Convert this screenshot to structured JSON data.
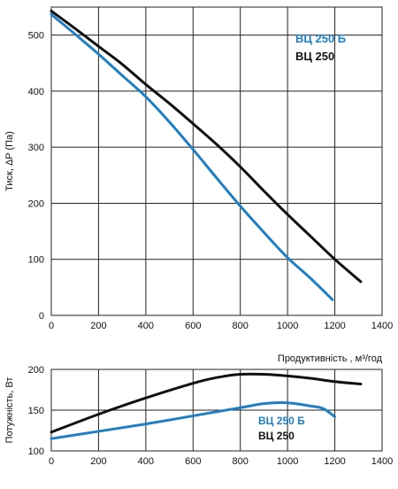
{
  "chart_data": [
    {
      "type": "line",
      "ylabel": "Тиск, ΔP (Па)",
      "xlim": [
        0,
        1400
      ],
      "ylim": [
        0,
        550
      ],
      "x_ticks": [
        0,
        200,
        400,
        600,
        800,
        1000,
        1200,
        1400
      ],
      "y_ticks": [
        0,
        100,
        200,
        300,
        400,
        500
      ],
      "grid": true,
      "legend_placement": "top-right",
      "series": [
        {
          "name": "ВЦ 250 Б",
          "color": "#1f7fc4",
          "points": [
            [
              0,
              537
            ],
            [
              100,
              502
            ],
            [
              200,
              466
            ],
            [
              300,
              428
            ],
            [
              400,
              390
            ],
            [
              500,
              345
            ],
            [
              600,
              296
            ],
            [
              700,
              245
            ],
            [
              800,
              195
            ],
            [
              900,
              148
            ],
            [
              1000,
              103
            ],
            [
              1100,
              65
            ],
            [
              1190,
              28
            ]
          ]
        },
        {
          "name": "ВЦ 250",
          "color": "#111111",
          "points": [
            [
              0,
              543
            ],
            [
              100,
              512
            ],
            [
              200,
              480
            ],
            [
              300,
              448
            ],
            [
              400,
              412
            ],
            [
              500,
              378
            ],
            [
              600,
              342
            ],
            [
              700,
              305
            ],
            [
              800,
              265
            ],
            [
              900,
              222
            ],
            [
              1000,
              180
            ],
            [
              1100,
              140
            ],
            [
              1200,
              100
            ],
            [
              1310,
              60
            ]
          ]
        }
      ]
    },
    {
      "type": "line",
      "xlabel": "Продуктивність , м³/год",
      "ylabel": "Потужність, Вт",
      "xlim": [
        0,
        1400
      ],
      "ylim": [
        100,
        200
      ],
      "x_ticks": [
        0,
        200,
        400,
        600,
        800,
        1000,
        1200,
        1400
      ],
      "y_ticks": [
        100,
        150,
        200
      ],
      "grid": true,
      "legend_placement": "bottom-right",
      "series": [
        {
          "name": "ВЦ 250 Б",
          "color": "#1f7fc4",
          "points": [
            [
              0,
              115
            ],
            [
              200,
              124
            ],
            [
              400,
              133
            ],
            [
              600,
              143
            ],
            [
              800,
              153
            ],
            [
              900,
              158
            ],
            [
              1000,
              159
            ],
            [
              1100,
              155
            ],
            [
              1150,
              152
            ],
            [
              1200,
              142
            ]
          ]
        },
        {
          "name": "ВЦ 250",
          "color": "#111111",
          "points": [
            [
              0,
              123
            ],
            [
              200,
              145
            ],
            [
              400,
              165
            ],
            [
              600,
              183
            ],
            [
              700,
              190
            ],
            [
              800,
              194
            ],
            [
              900,
              194
            ],
            [
              1000,
              192
            ],
            [
              1100,
              189
            ],
            [
              1200,
              185
            ],
            [
              1310,
              182
            ]
          ]
        }
      ]
    }
  ]
}
